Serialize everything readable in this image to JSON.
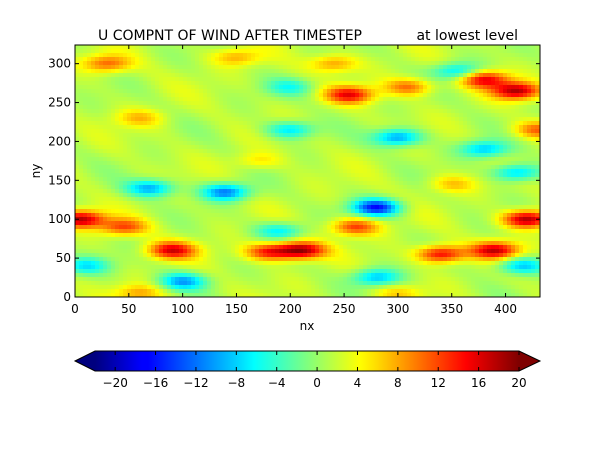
{
  "chart_data": {
    "type": "heatmap",
    "title_left": "U COMPNT OF WIND AFTER TIMESTEP",
    "title_right": "at lowest level",
    "xlabel": "nx",
    "ylabel": "ny",
    "xlim": [
      0,
      432
    ],
    "ylim": [
      0,
      324
    ],
    "x_ticks": [
      0,
      50,
      100,
      150,
      200,
      250,
      300,
      350,
      400
    ],
    "y_ticks": [
      0,
      50,
      100,
      150,
      200,
      250,
      300
    ],
    "colorbar": {
      "colormap": "jet",
      "extend": "both",
      "vmin": -22,
      "vmax": 20,
      "ticks": [
        "−20",
        "−16",
        "−12",
        "−8",
        "−4",
        "0",
        "4",
        "8",
        "12",
        "16",
        "20"
      ],
      "tick_values": [
        -20,
        -16,
        -12,
        -8,
        -4,
        0,
        4,
        8,
        12,
        16,
        20
      ]
    },
    "features": [
      {
        "x": 210,
        "y": 60,
        "u": 17
      },
      {
        "x": 90,
        "y": 60,
        "u": 14
      },
      {
        "x": 180,
        "y": 58,
        "u": 12
      },
      {
        "x": 390,
        "y": 60,
        "u": 15
      },
      {
        "x": 340,
        "y": 55,
        "u": 14
      },
      {
        "x": 420,
        "y": 100,
        "u": 17
      },
      {
        "x": 5,
        "y": 100,
        "u": 16
      },
      {
        "x": 380,
        "y": 280,
        "u": 14
      },
      {
        "x": 410,
        "y": 265,
        "u": 16
      },
      {
        "x": 255,
        "y": 260,
        "u": 13
      },
      {
        "x": 310,
        "y": 270,
        "u": 9
      },
      {
        "x": 45,
        "y": 90,
        "u": 10
      },
      {
        "x": 260,
        "y": 90,
        "u": 11
      },
      {
        "x": 430,
        "y": 215,
        "u": 9
      },
      {
        "x": 280,
        "y": 115,
        "u": -17
      },
      {
        "x": 140,
        "y": 135,
        "u": -13
      },
      {
        "x": 70,
        "y": 140,
        "u": -11
      },
      {
        "x": 300,
        "y": 205,
        "u": -12
      },
      {
        "x": 380,
        "y": 190,
        "u": -10
      },
      {
        "x": 410,
        "y": 160,
        "u": -10
      },
      {
        "x": 100,
        "y": 20,
        "u": -11
      },
      {
        "x": 280,
        "y": 25,
        "u": -10
      },
      {
        "x": 200,
        "y": 215,
        "u": -9
      },
      {
        "x": 415,
        "y": 40,
        "u": -10
      },
      {
        "x": 10,
        "y": 40,
        "u": -8
      },
      {
        "x": 190,
        "y": 85,
        "u": -8
      },
      {
        "x": 355,
        "y": 290,
        "u": -9
      },
      {
        "x": 200,
        "y": 270,
        "u": -6
      },
      {
        "x": 60,
        "y": 5,
        "u": 6
      },
      {
        "x": 300,
        "y": 5,
        "u": 4
      },
      {
        "x": 150,
        "y": 308,
        "u": 6
      },
      {
        "x": 30,
        "y": 300,
        "u": 9
      },
      {
        "x": 240,
        "y": 300,
        "u": 7
      },
      {
        "x": 170,
        "y": 175,
        "u": 4
      },
      {
        "x": 350,
        "y": 145,
        "u": 5
      },
      {
        "x": 60,
        "y": 230,
        "u": 5
      }
    ]
  }
}
